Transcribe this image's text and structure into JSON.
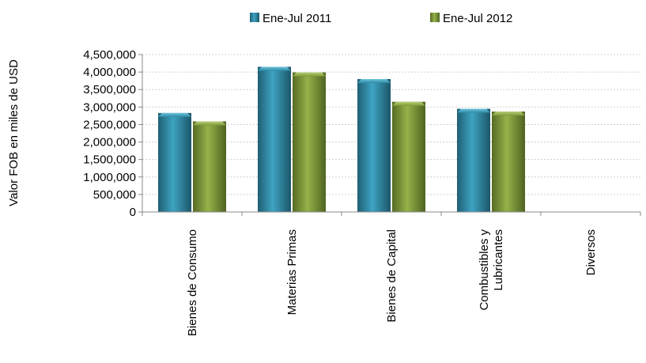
{
  "chart_data": {
    "type": "bar",
    "title": "",
    "xlabel": "",
    "ylabel": "Valor FOB en miles de USD",
    "ylim": [
      0,
      4500000
    ],
    "yticks": [
      "0",
      "500,000",
      "1,000,000",
      "1,500,000",
      "2,000,000",
      "2,500,000",
      "3,000,000",
      "3,500,000",
      "4,000,000",
      "4,500,000"
    ],
    "categories": [
      "Bienes de Consumo",
      "Materias Primas",
      "Bienes de Capital",
      "Combustibles y Lubricantes",
      "Diversos"
    ],
    "category_lines": [
      [
        "Bienes de Consumo"
      ],
      [
        "Materias Primas"
      ],
      [
        "Bienes de Capital"
      ],
      [
        "Combustibles y",
        "Lubricantes"
      ],
      [
        "Diversos"
      ]
    ],
    "series": [
      {
        "name": "Ene-Jul 2011",
        "color": "#2e8aa5",
        "values": [
          2830000,
          4150000,
          3800000,
          2950000,
          0
        ]
      },
      {
        "name": "Ene-Jul 2012",
        "color": "#7e9a3a",
        "values": [
          2590000,
          3990000,
          3150000,
          2870000,
          0
        ]
      }
    ],
    "grid": true,
    "legend_position": "top-center"
  }
}
